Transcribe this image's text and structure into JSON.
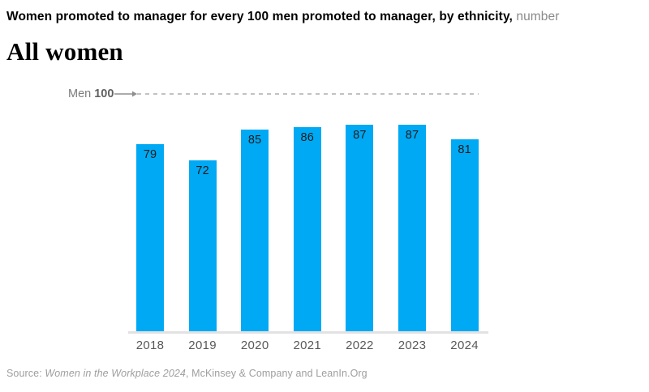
{
  "header": {
    "title_bold": "Women promoted to manager for every 100 men promoted to manager, by ethnicity,",
    "title_light": "number",
    "subtitle": "All women"
  },
  "chart_data": {
    "type": "bar",
    "title": "Women promoted to manager for every 100 men promoted to manager, by ethnicity (number)",
    "subtitle": "All women",
    "categories": [
      "2018",
      "2019",
      "2020",
      "2021",
      "2022",
      "2023",
      "2024"
    ],
    "values": [
      79,
      72,
      85,
      86,
      87,
      87,
      81
    ],
    "xlabel": "",
    "ylabel": "",
    "ylim": [
      0,
      100
    ],
    "grid": false,
    "bar_color": "#00a9f4",
    "value_label_color": "#1c1c1c",
    "reference_line": {
      "label": "Men",
      "value_label": "100",
      "value": 100,
      "style": "dashed",
      "color": "#c2c2c2"
    }
  },
  "footer": {
    "source_prefix": "Source: ",
    "source_italic": "Women in the Workplace 2024",
    "source_rest": ", McKinsey & Company and LeanIn.Org"
  }
}
